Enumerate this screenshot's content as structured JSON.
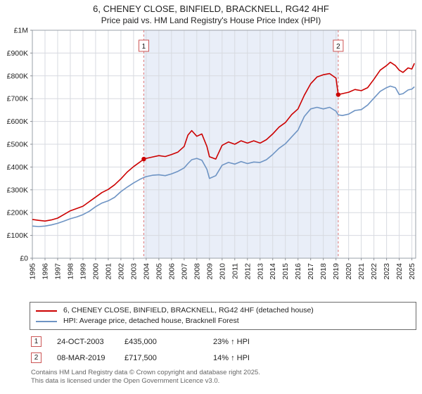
{
  "title": "6, CHENEY CLOSE, BINFIELD, BRACKNELL, RG42 4HF",
  "subtitle": "Price paid vs. HM Land Registry's House Price Index (HPI)",
  "chart_data": {
    "type": "line",
    "x_range": [
      1995,
      2025.3
    ],
    "ylim": [
      0,
      1000000
    ],
    "grid": true,
    "legend_position": "bottom-box",
    "colors": {
      "property_line": "#cc0000",
      "hpi_line": "#6e94c4",
      "shaded_region": "#e9eef8",
      "dashed_marker_line": "#dd7777",
      "marker_box_border": "#cc5555",
      "gridline": "#d7dae0",
      "plot_border": "#9aa0a8"
    },
    "y_ticks": [
      {
        "value": 0,
        "label": "£0"
      },
      {
        "value": 100000,
        "label": "£100K"
      },
      {
        "value": 200000,
        "label": "£200K"
      },
      {
        "value": 300000,
        "label": "£300K"
      },
      {
        "value": 400000,
        "label": "£400K"
      },
      {
        "value": 500000,
        "label": "£500K"
      },
      {
        "value": 600000,
        "label": "£600K"
      },
      {
        "value": 700000,
        "label": "£700K"
      },
      {
        "value": 800000,
        "label": "£800K"
      },
      {
        "value": 900000,
        "label": "£900K"
      },
      {
        "value": 1000000,
        "label": "£1M"
      }
    ],
    "x_ticks": [
      1995,
      1996,
      1997,
      1998,
      1999,
      2000,
      2001,
      2002,
      2003,
      2004,
      2005,
      2006,
      2007,
      2008,
      2009,
      2010,
      2011,
      2012,
      2013,
      2014,
      2015,
      2016,
      2017,
      2018,
      2019,
      2020,
      2021,
      2022,
      2023,
      2024,
      2025
    ],
    "x": [
      1995,
      1995.5,
      1996,
      1996.5,
      1997,
      1997.5,
      1998,
      1998.5,
      1999,
      1999.5,
      2000,
      2000.5,
      2001,
      2001.5,
      2002,
      2002.5,
      2003,
      2003.5,
      2003.81,
      2004,
      2004.5,
      2005,
      2005.5,
      2006,
      2006.5,
      2007,
      2007.3,
      2007.6,
      2008,
      2008.4,
      2008.8,
      2009,
      2009.5,
      2010,
      2010.5,
      2011,
      2011.5,
      2012,
      2012.5,
      2013,
      2013.5,
      2014,
      2014.5,
      2015,
      2015.5,
      2016,
      2016.5,
      2017,
      2017.5,
      2018,
      2018.5,
      2019,
      2019.18,
      2019.5,
      2020,
      2020.5,
      2021,
      2021.5,
      2022,
      2022.5,
      2023,
      2023.3,
      2023.7,
      2024,
      2024.3,
      2024.7,
      2025,
      2025.2
    ],
    "series": [
      {
        "name": "6, CHENEY CLOSE, BINFIELD, BRACKNELL, RG42 4HF (detached house)",
        "color": "#cc0000",
        "values": [
          170000,
          166000,
          163000,
          168000,
          176000,
          192000,
          208000,
          218000,
          228000,
          248000,
          268000,
          288000,
          302000,
          322000,
          348000,
          378000,
          402000,
          422000,
          435000,
          438000,
          444000,
          450000,
          446000,
          455000,
          465000,
          490000,
          540000,
          560000,
          535000,
          545000,
          490000,
          445000,
          435000,
          495000,
          510000,
          500000,
          515000,
          505000,
          515000,
          505000,
          520000,
          545000,
          575000,
          595000,
          630000,
          655000,
          715000,
          765000,
          795000,
          805000,
          810000,
          790000,
          717500,
          722000,
          728000,
          740000,
          735000,
          748000,
          785000,
          825000,
          845000,
          860000,
          845000,
          825000,
          815000,
          835000,
          830000,
          855000
        ]
      },
      {
        "name": "HPI: Average price, detached house, Bracknell Forest",
        "color": "#6e94c4",
        "values": [
          141000,
          139000,
          141000,
          146000,
          153000,
          163000,
          173000,
          181000,
          191000,
          206000,
          226000,
          242000,
          252000,
          267000,
          292000,
          312000,
          330000,
          346000,
          354000,
          358000,
          364000,
          366000,
          362000,
          370000,
          381000,
          396000,
          415000,
          432000,
          438000,
          430000,
          390000,
          350000,
          362000,
          408000,
          420000,
          413000,
          424000,
          415000,
          422000,
          420000,
          432000,
          455000,
          482000,
          502000,
          532000,
          562000,
          622000,
          655000,
          662000,
          655000,
          662000,
          645000,
          629000,
          626000,
          632000,
          648000,
          652000,
          672000,
          702000,
          732000,
          748000,
          755000,
          748000,
          718000,
          722000,
          738000,
          742000,
          752000
        ]
      }
    ],
    "markers": [
      {
        "label": "1",
        "x": 2003.81,
        "value": 435000
      },
      {
        "label": "2",
        "x": 2019.18,
        "value": 717500
      }
    ],
    "shaded_region": {
      "from": 2003.81,
      "to": 2019.18,
      "color": "#e9eef8"
    }
  },
  "transactions": [
    {
      "num": "1",
      "date": "24-OCT-2003",
      "price": "£435,000",
      "hpi": "23% ↑ HPI"
    },
    {
      "num": "2",
      "date": "08-MAR-2019",
      "price": "£717,500",
      "hpi": "14% ↑ HPI"
    }
  ],
  "footer": {
    "line1": "Contains HM Land Registry data © Crown copyright and database right 2025.",
    "line2": "This data is licensed under the Open Government Licence v3.0."
  }
}
